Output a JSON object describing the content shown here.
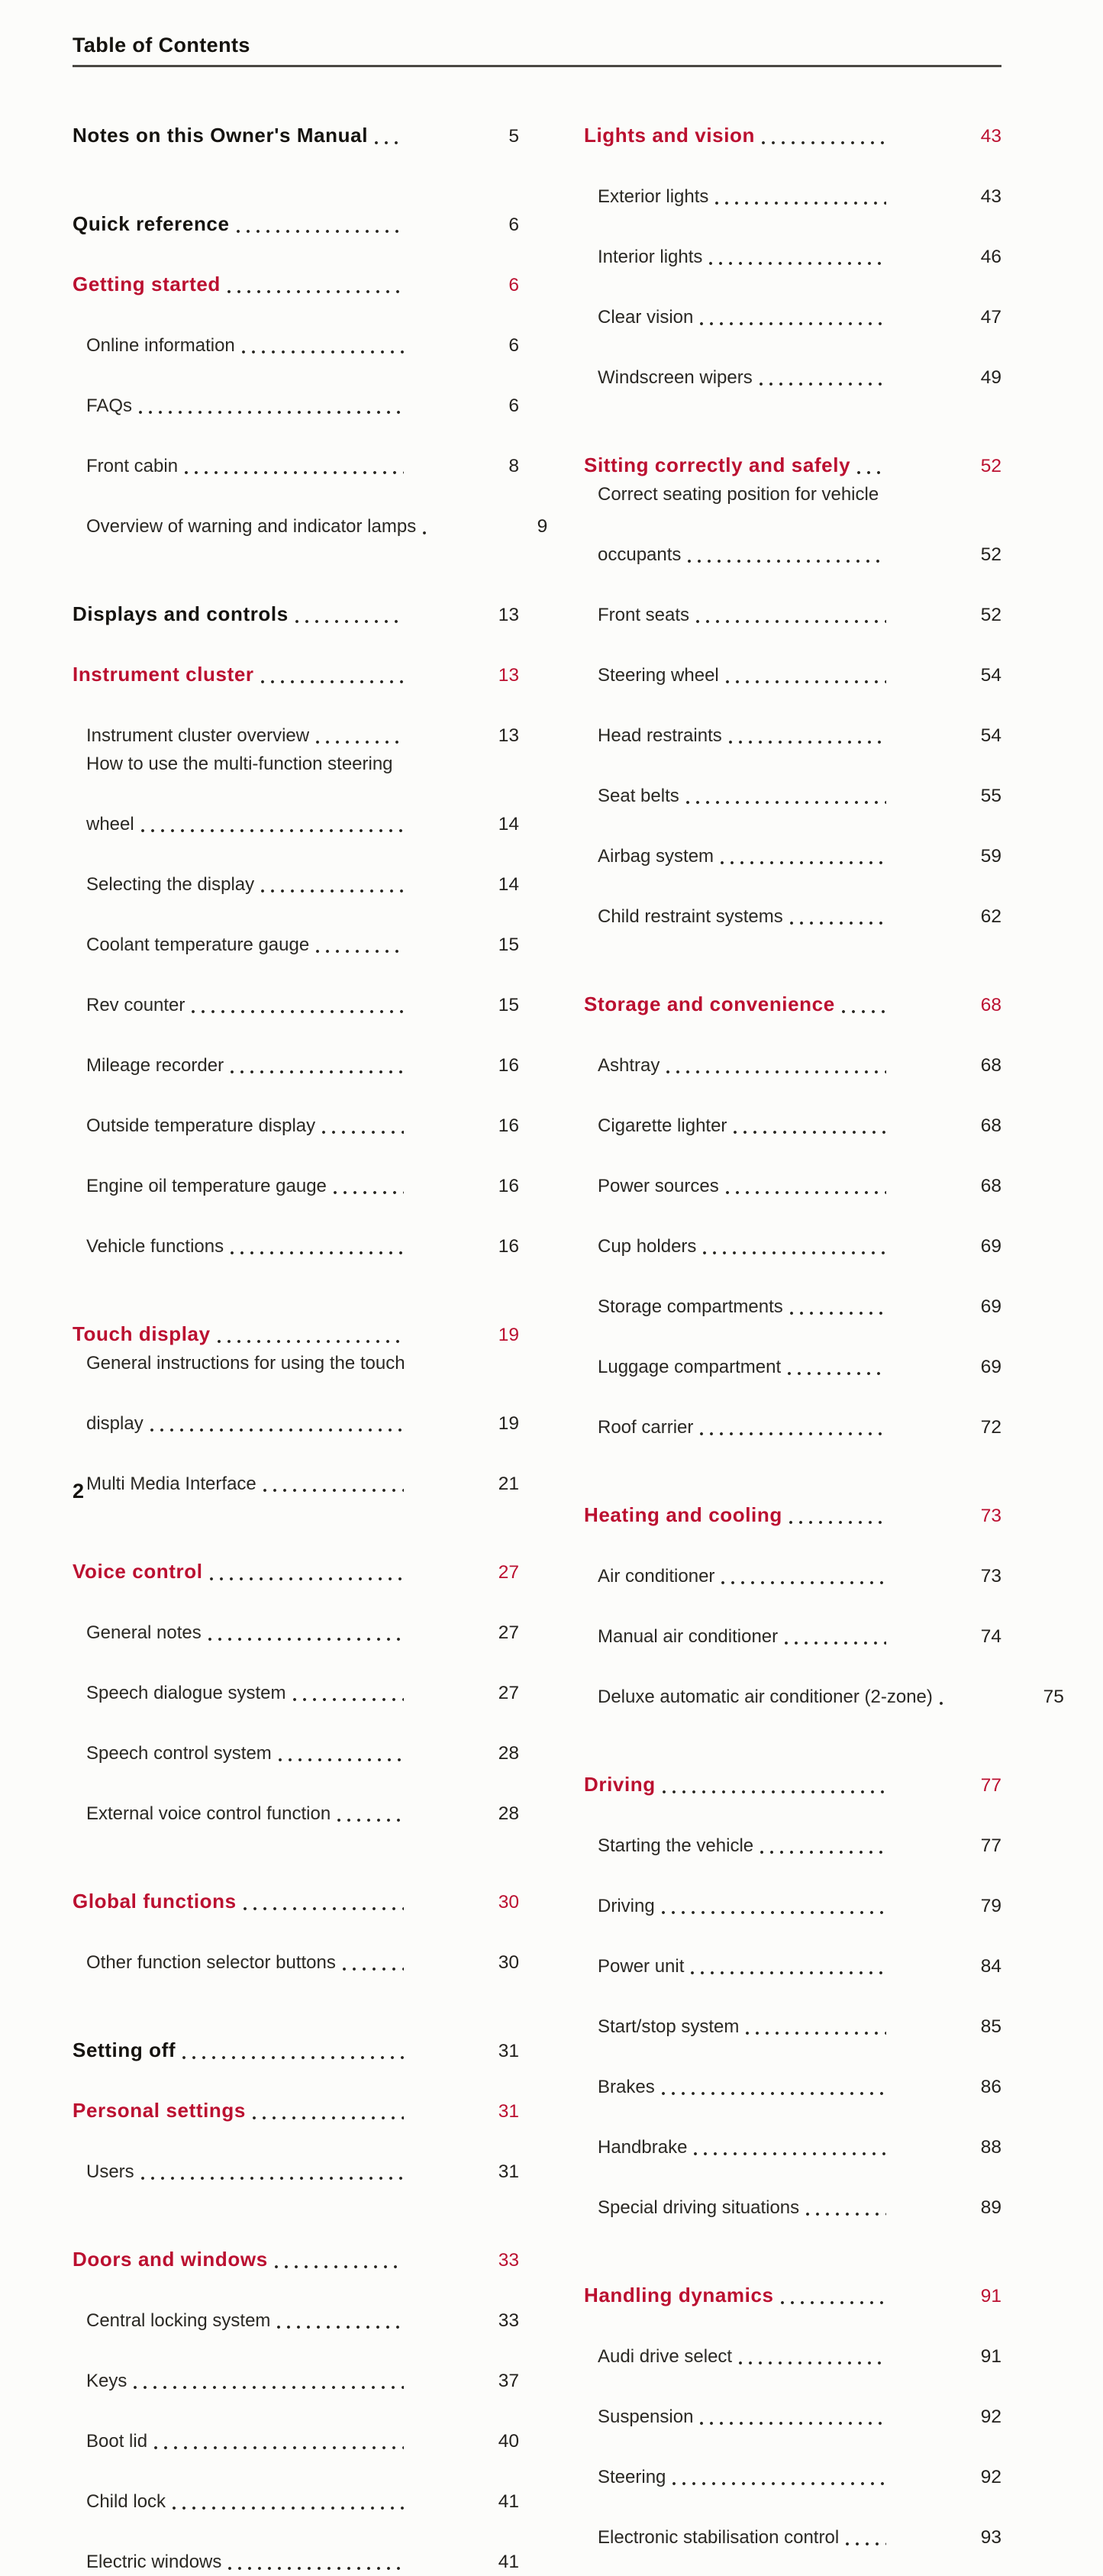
{
  "page": {
    "title": "Table of Contents",
    "page_number": "2",
    "colors": {
      "accent_red": "#bb1030",
      "text": "#23211d"
    }
  },
  "toc": {
    "columns": [
      {
        "entries": [
          {
            "type": "section",
            "label": "Notes on this Owner's Manual",
            "page": "5"
          },
          {
            "type": "section",
            "gap": true,
            "label": "Quick reference",
            "page": "6"
          },
          {
            "type": "section-red",
            "label": "Getting started",
            "page": "6"
          },
          {
            "type": "sub",
            "label": "Online information",
            "page": "6"
          },
          {
            "type": "sub",
            "label": "FAQs",
            "page": "6"
          },
          {
            "type": "sub",
            "label": "Front cabin",
            "page": "8"
          },
          {
            "type": "sub",
            "label": "Overview of warning and indicator lamps",
            "page": "9"
          },
          {
            "type": "section",
            "gap": true,
            "label": "Displays and controls",
            "page": "13"
          },
          {
            "type": "section-red",
            "label": "Instrument cluster",
            "page": "13"
          },
          {
            "type": "sub",
            "label": "Instrument cluster overview",
            "page": "13"
          },
          {
            "type": "sub",
            "pre": "How to use the multi-function steering",
            "label": "wheel",
            "page": "14"
          },
          {
            "type": "sub",
            "label": "Selecting the display",
            "page": "14"
          },
          {
            "type": "sub",
            "label": "Coolant temperature gauge",
            "page": "15"
          },
          {
            "type": "sub",
            "label": "Rev counter",
            "page": "15"
          },
          {
            "type": "sub",
            "label": "Mileage recorder",
            "page": "16"
          },
          {
            "type": "sub",
            "label": "Outside temperature display",
            "page": "16"
          },
          {
            "type": "sub",
            "label": "Engine oil temperature gauge",
            "page": "16"
          },
          {
            "type": "sub",
            "label": "Vehicle functions",
            "page": "16"
          },
          {
            "type": "section-red",
            "gap": true,
            "label": "Touch display",
            "page": "19"
          },
          {
            "type": "sub",
            "pre": "General instructions for using the touch",
            "label": "display",
            "page": "19"
          },
          {
            "type": "sub",
            "label": "Multi Media Interface",
            "page": "21"
          },
          {
            "type": "section-red",
            "gap": true,
            "label": "Voice control",
            "page": "27"
          },
          {
            "type": "sub",
            "label": "General notes",
            "page": "27"
          },
          {
            "type": "sub",
            "label": "Speech dialogue system",
            "page": "27"
          },
          {
            "type": "sub",
            "label": "Speech control system",
            "page": "28"
          },
          {
            "type": "sub",
            "label": "External voice control function",
            "page": "28"
          },
          {
            "type": "section-red",
            "gap": true,
            "label": "Global functions",
            "page": "30"
          },
          {
            "type": "sub",
            "label": "Other function selector buttons",
            "page": "30"
          },
          {
            "type": "section",
            "gap": true,
            "label": "Setting off",
            "page": "31"
          },
          {
            "type": "section-red",
            "label": "Personal settings",
            "page": "31"
          },
          {
            "type": "sub",
            "label": "Users",
            "page": "31"
          },
          {
            "type": "section-red",
            "gap": true,
            "label": "Doors and windows",
            "page": "33"
          },
          {
            "type": "sub",
            "label": "Central locking system",
            "page": "33"
          },
          {
            "type": "sub",
            "label": "Keys",
            "page": "37"
          },
          {
            "type": "sub",
            "label": "Boot lid",
            "page": "40"
          },
          {
            "type": "sub",
            "label": "Child lock",
            "page": "41"
          },
          {
            "type": "sub",
            "label": "Electric windows",
            "page": "41"
          }
        ]
      },
      {
        "entries": [
          {
            "type": "section-red",
            "label": "Lights and vision",
            "page": "43"
          },
          {
            "type": "sub",
            "label": "Exterior lights",
            "page": "43"
          },
          {
            "type": "sub",
            "label": "Interior lights",
            "page": "46"
          },
          {
            "type": "sub",
            "label": "Clear vision",
            "page": "47"
          },
          {
            "type": "sub",
            "label": "Windscreen wipers",
            "page": "49"
          },
          {
            "type": "section-red",
            "gap": true,
            "label": "Sitting correctly and safely",
            "page": "52"
          },
          {
            "type": "sub",
            "pre": "Correct seating position for vehicle",
            "label": "occupants",
            "page": "52"
          },
          {
            "type": "sub",
            "label": "Front seats",
            "page": "52"
          },
          {
            "type": "sub",
            "label": "Steering wheel",
            "page": "54"
          },
          {
            "type": "sub",
            "label": "Head restraints",
            "page": "54"
          },
          {
            "type": "sub",
            "label": "Seat belts",
            "page": "55"
          },
          {
            "type": "sub",
            "label": "Airbag system",
            "page": "59"
          },
          {
            "type": "sub",
            "label": "Child restraint systems",
            "page": "62"
          },
          {
            "type": "section-red",
            "gap": true,
            "label": "Storage and convenience",
            "page": "68"
          },
          {
            "type": "sub",
            "label": "Ashtray",
            "page": "68"
          },
          {
            "type": "sub",
            "label": "Cigarette lighter",
            "page": "68"
          },
          {
            "type": "sub",
            "label": "Power sources",
            "page": "68"
          },
          {
            "type": "sub",
            "label": "Cup holders",
            "page": "69"
          },
          {
            "type": "sub",
            "label": "Storage compartments",
            "page": "69"
          },
          {
            "type": "sub",
            "label": "Luggage compartment",
            "page": "69"
          },
          {
            "type": "sub",
            "label": "Roof carrier",
            "page": "72"
          },
          {
            "type": "section-red",
            "gap": true,
            "label": "Heating and cooling",
            "page": "73"
          },
          {
            "type": "sub",
            "label": "Air conditioner",
            "page": "73"
          },
          {
            "type": "sub",
            "label": "Manual air conditioner",
            "page": "74"
          },
          {
            "type": "sub",
            "label": "Deluxe automatic air conditioner (2-zone)",
            "page": "75"
          },
          {
            "type": "section-red",
            "gap": true,
            "label": "Driving",
            "page": "77"
          },
          {
            "type": "sub",
            "label": "Starting the vehicle",
            "page": "77"
          },
          {
            "type": "sub",
            "label": "Driving",
            "page": "79"
          },
          {
            "type": "sub",
            "label": "Power unit",
            "page": "84"
          },
          {
            "type": "sub",
            "label": "Start/stop system",
            "page": "85"
          },
          {
            "type": "sub",
            "label": "Brakes",
            "page": "86"
          },
          {
            "type": "sub",
            "label": "Handbrake",
            "page": "88"
          },
          {
            "type": "sub",
            "label": "Special driving situations",
            "page": "89"
          },
          {
            "type": "section-red",
            "gap": true,
            "label": "Handling dynamics",
            "page": "91"
          },
          {
            "type": "sub",
            "label": "Audi drive select",
            "page": "91"
          },
          {
            "type": "sub",
            "label": "Suspension",
            "page": "92"
          },
          {
            "type": "sub",
            "label": "Steering",
            "page": "92"
          },
          {
            "type": "sub",
            "label": "Electronic stabilisation control",
            "page": "93"
          }
        ]
      }
    ]
  }
}
